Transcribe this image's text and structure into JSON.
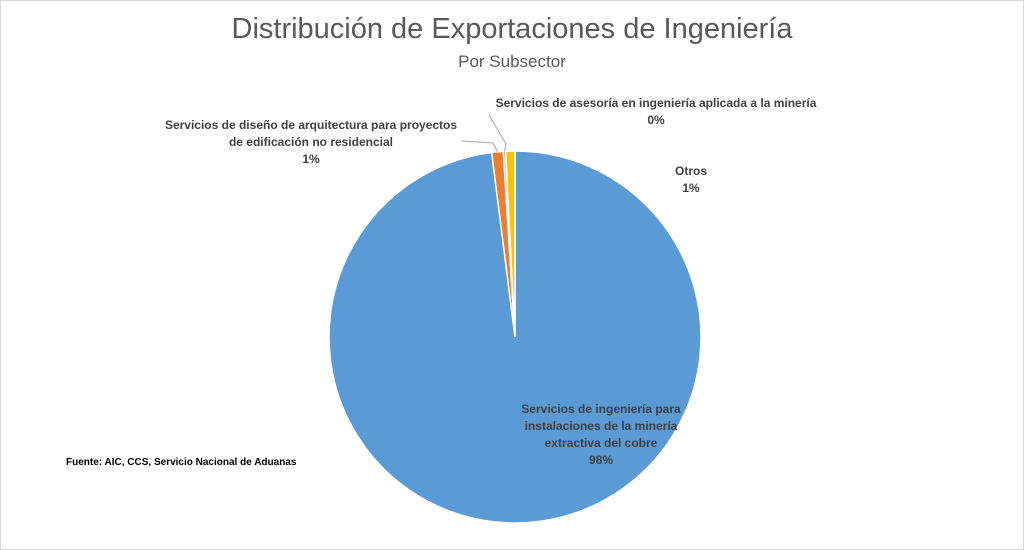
{
  "chart_data": {
    "type": "pie",
    "title": "Distribución de Exportaciones de Ingeniería",
    "subtitle": "Por Subsector",
    "slices": [
      {
        "label_lines": [
          "Servicios de ingeniería para",
          "instalaciones de la minería",
          "extractiva del cobre"
        ],
        "value": 98,
        "pct_label": "98%",
        "color": "#5b9bd5"
      },
      {
        "label_lines": [
          "Servicios de diseño de arquitectura para proyectos",
          "de edificación no residencial"
        ],
        "value": 1,
        "pct_label": "1%",
        "color": "#ed7d31"
      },
      {
        "label_lines": [
          "Servicios de asesoría en ingeniería aplicada a la minería"
        ],
        "value": 0.2,
        "pct_label": "0%",
        "color": "#a5a5a5"
      },
      {
        "label_lines": [
          "Otros"
        ],
        "value": 0.8,
        "pct_label": "1%",
        "color": "#ffc000"
      }
    ],
    "legend": "none"
  },
  "source_note": "Fuente: AIC, CCS, Servicio Nacional de Aduanas"
}
